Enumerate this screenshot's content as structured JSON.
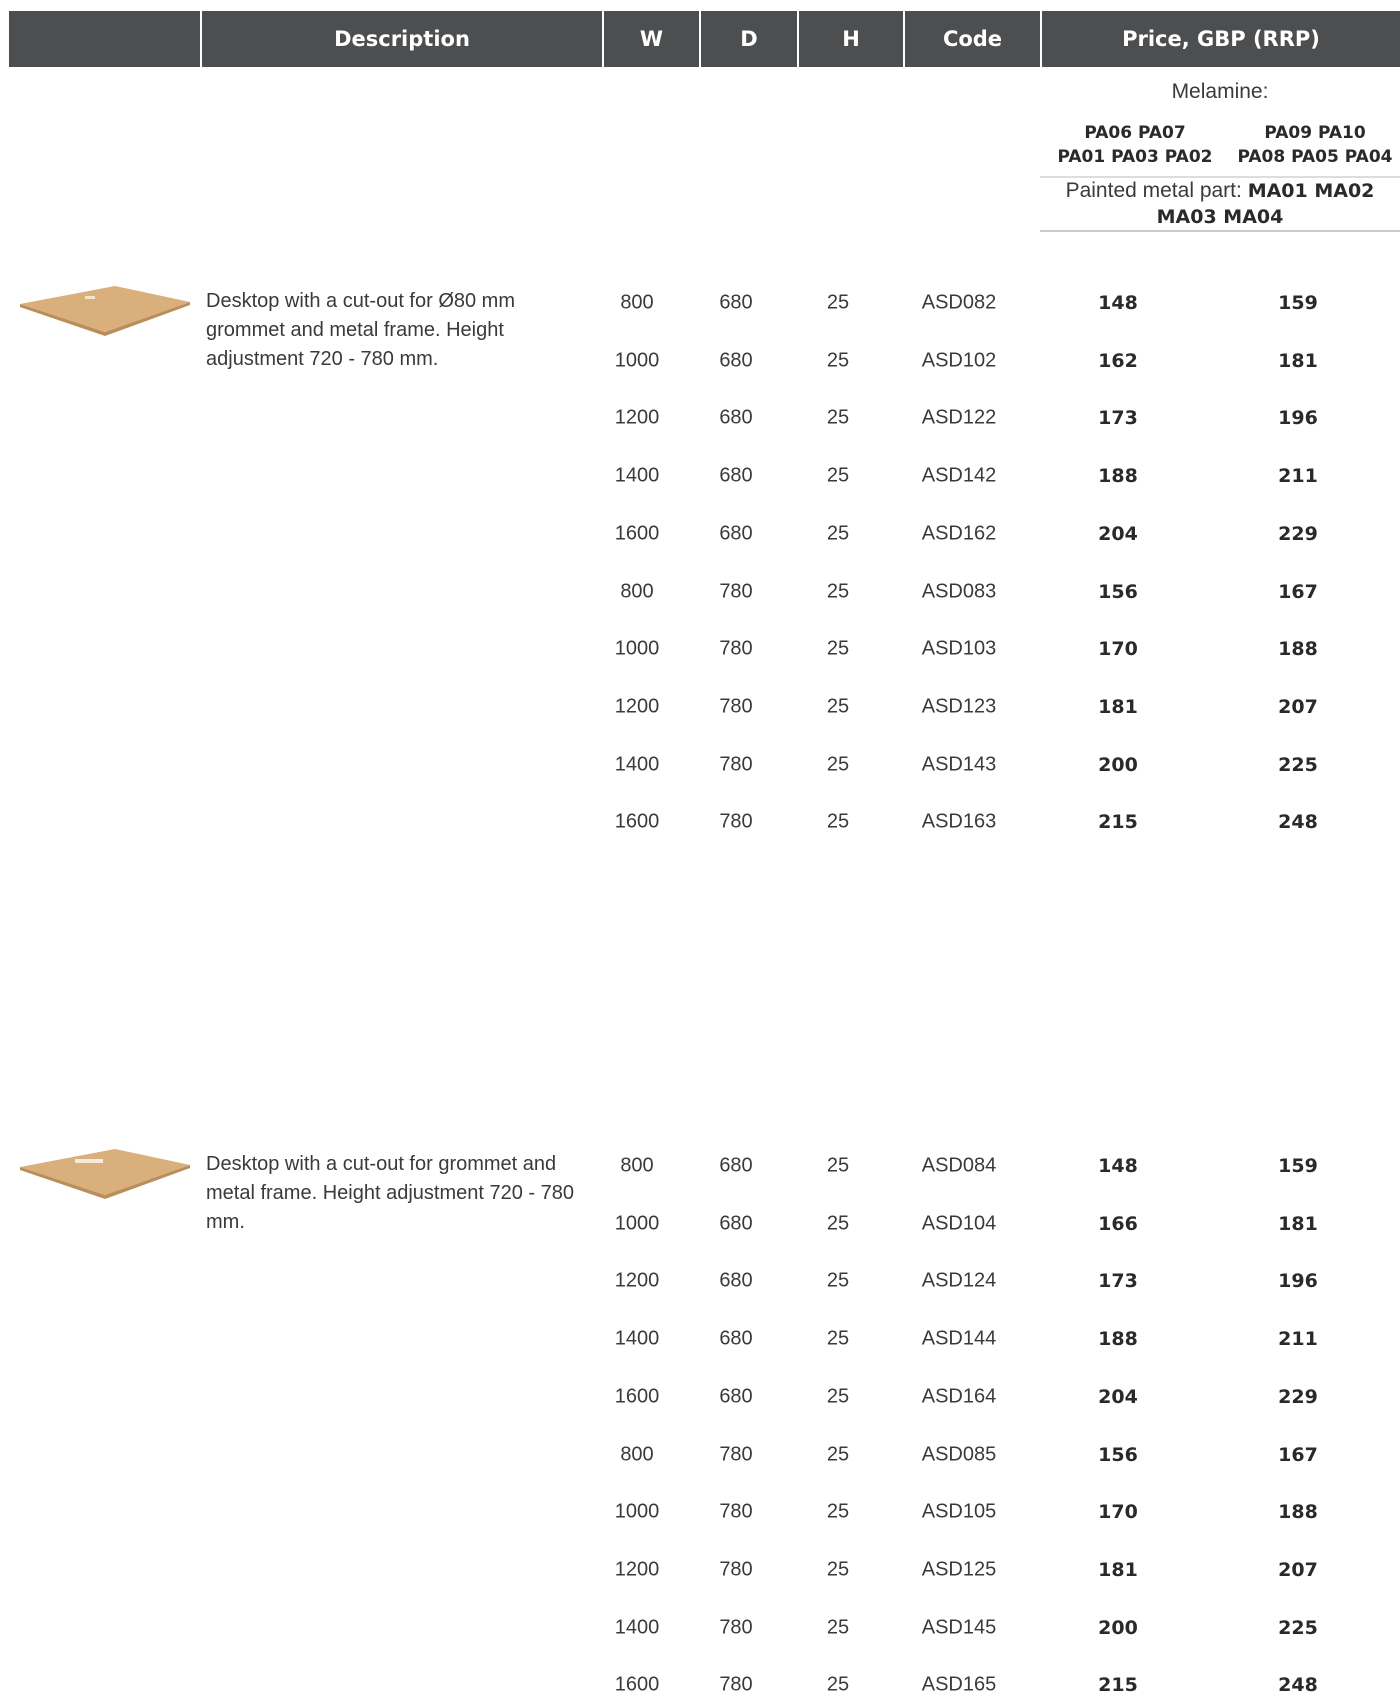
{
  "header": {
    "columns": [
      "Description",
      "W",
      "D",
      "H",
      "Code",
      "Price, GBP (RRP)"
    ]
  },
  "finishes": {
    "title": "Melamine:",
    "group_1": [
      "PA06 PA07",
      "PA01 PA03 PA02"
    ],
    "group_2": [
      "PA09 PA10",
      "PA08 PA05 PA04"
    ],
    "metal_label": "Painted metal part:",
    "metal_codes": [
      "MA01 MA02",
      "MA03  MA04"
    ]
  },
  "products": [
    {
      "description": "Desktop with a cut-out for Ø80 mm grommet and metal frame. Height adjustment 720 - 780 mm.",
      "rows": [
        [
          800,
          680,
          25,
          "ASD082",
          148,
          159
        ],
        [
          1000,
          680,
          25,
          "ASD102",
          162,
          181
        ],
        [
          1200,
          680,
          25,
          "ASD122",
          173,
          196
        ],
        [
          1400,
          680,
          25,
          "ASD142",
          188,
          211
        ],
        [
          1600,
          680,
          25,
          "ASD162",
          204,
          229
        ],
        [
          800,
          780,
          25,
          "ASD083",
          156,
          167
        ],
        [
          1000,
          780,
          25,
          "ASD103",
          170,
          188
        ],
        [
          1200,
          780,
          25,
          "ASD123",
          181,
          207
        ],
        [
          1400,
          780,
          25,
          "ASD143",
          200,
          225
        ],
        [
          1600,
          780,
          25,
          "ASD163",
          215,
          248
        ]
      ]
    },
    {
      "description": "Desktop with a cut-out for grommet and metal frame. Height adjustment 720 - 780 mm.",
      "rows": [
        [
          800,
          680,
          25,
          "ASD084",
          148,
          159
        ],
        [
          1000,
          680,
          25,
          "ASD104",
          166,
          181
        ],
        [
          1200,
          680,
          25,
          "ASD124",
          173,
          196
        ],
        [
          1400,
          680,
          25,
          "ASD144",
          188,
          211
        ],
        [
          1600,
          680,
          25,
          "ASD164",
          204,
          229
        ],
        [
          800,
          780,
          25,
          "ASD085",
          156,
          167
        ],
        [
          1000,
          780,
          25,
          "ASD105",
          170,
          188
        ],
        [
          1200,
          780,
          25,
          "ASD125",
          181,
          207
        ],
        [
          1400,
          780,
          25,
          "ASD145",
          200,
          225
        ],
        [
          1600,
          780,
          25,
          "ASD165",
          215,
          248
        ]
      ]
    }
  ]
}
